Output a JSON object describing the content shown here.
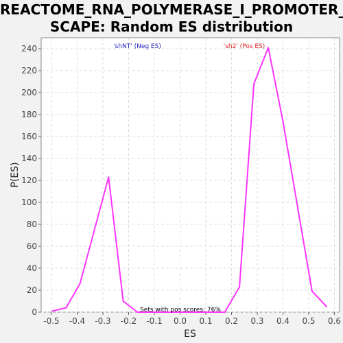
{
  "chart_data": {
    "type": "line",
    "title_line1": "REACTOME_RNA_POLYMERASE_I_PROMOTER_E",
    "title_line2": "SCAPE: Random ES distribution",
    "xlabel": "ES",
    "ylabel": "P(ES)",
    "xlim": [
      -0.54,
      0.62
    ],
    "ylim": [
      0,
      250
    ],
    "xticks": [
      -0.5,
      -0.4,
      -0.3,
      -0.2,
      -0.1,
      0.0,
      0.1,
      0.2,
      0.3,
      0.4,
      0.5,
      0.6
    ],
    "xtick_labels": [
      "-0.5",
      "-0.4",
      "-0.3",
      "-0.2",
      "-0.1",
      "0.0",
      "0.1",
      "0.2",
      "0.3",
      "0.4",
      "0.5",
      "0.6"
    ],
    "yticks": [
      0,
      20,
      40,
      60,
      80,
      100,
      120,
      140,
      160,
      180,
      200,
      220,
      240
    ],
    "ytick_labels": [
      "0",
      "20",
      "40",
      "60",
      "80",
      "100",
      "120",
      "140",
      "160",
      "180",
      "200",
      "220",
      "240"
    ],
    "grid": true,
    "series": [
      {
        "name": "Random ES",
        "color": "#ff33ff",
        "x": [
          -0.497,
          -0.443,
          -0.389,
          -0.278,
          -0.221,
          -0.166,
          0.174,
          0.231,
          0.287,
          0.343,
          0.399,
          0.513,
          0.57
        ],
        "y": [
          1,
          4,
          26,
          123,
          10,
          0,
          0,
          23,
          208,
          241,
          175,
          19,
          5
        ]
      }
    ],
    "legend_neg": "'shNT' (Neg ES)",
    "legend_neg_color": "#2222bb",
    "legend_pos": "'sh2' (Pos ES)",
    "legend_pos_color": "#dd2222",
    "annotation": "Sets with pos scores: 76%"
  }
}
